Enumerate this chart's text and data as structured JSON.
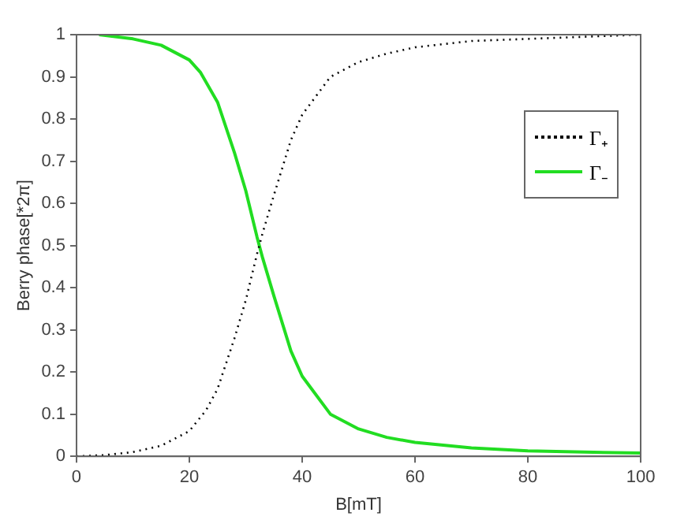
{
  "chart_data": {
    "type": "line",
    "xlabel": "B[mT]",
    "ylabel": "Berry phase[*2π]",
    "xlim": [
      0,
      100
    ],
    "xticks": [
      0,
      20,
      40,
      60,
      80,
      100
    ],
    "ylim": [
      0,
      1
    ],
    "yticks": [
      0,
      0.1,
      0.2,
      0.3,
      0.4,
      0.5,
      0.6,
      0.7,
      0.8,
      0.9,
      1
    ],
    "grid": false,
    "legend": "right",
    "marker": "none",
    "series": [
      {
        "name": "Γ₊",
        "color": "#000000",
        "line_style": "dotted",
        "x": [
          0,
          5,
          10,
          15,
          20,
          23,
          25,
          28,
          30,
          32,
          33,
          35,
          38,
          40,
          45,
          50,
          55,
          60,
          70,
          80,
          90,
          100
        ],
        "values": [
          0,
          0.003,
          0.01,
          0.025,
          0.06,
          0.11,
          0.16,
          0.28,
          0.37,
          0.48,
          0.53,
          0.62,
          0.75,
          0.81,
          0.9,
          0.935,
          0.955,
          0.97,
          0.985,
          0.99,
          0.995,
          1
        ]
      },
      {
        "name": "Γ₋",
        "color": "#22dd22",
        "line_style": "solid",
        "x": [
          4,
          10,
          15,
          20,
          22,
          25,
          28,
          30,
          32,
          33,
          35,
          38,
          40,
          45,
          50,
          55,
          60,
          70,
          80,
          90,
          100
        ],
        "values": [
          1,
          0.99,
          0.975,
          0.94,
          0.91,
          0.84,
          0.72,
          0.63,
          0.52,
          0.47,
          0.38,
          0.25,
          0.19,
          0.1,
          0.065,
          0.045,
          0.033,
          0.02,
          0.013,
          0.01,
          0.008
        ]
      }
    ]
  }
}
